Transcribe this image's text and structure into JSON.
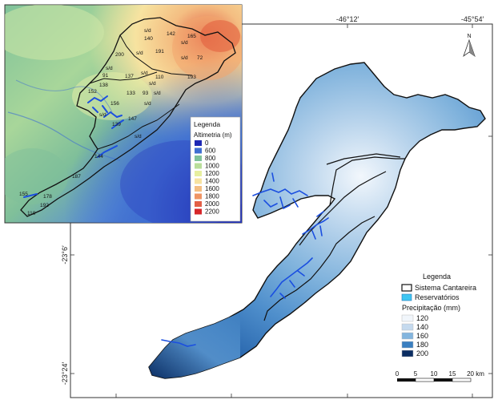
{
  "map": {
    "coords": {
      "top": [
        "-46°12′",
        "-45°54′"
      ],
      "left": [
        "-23°6′",
        "-23°24′"
      ]
    },
    "north_label": "N",
    "legend_precip": {
      "title": "Legenda",
      "items": [
        {
          "label": "Sistema Cantareira",
          "color": "#ffffff"
        },
        {
          "label": "Reservatórios",
          "color": "#3ec6f2"
        }
      ],
      "subtitle": "Precipitação (mm)",
      "classes": [
        {
          "label": "120",
          "color": "#f1f6fb"
        },
        {
          "label": "140",
          "color": "#c5daee"
        },
        {
          "label": "160",
          "color": "#83b5de"
        },
        {
          "label": "180",
          "color": "#3a7fc0"
        },
        {
          "label": "200",
          "color": "#0b2d62"
        }
      ]
    },
    "scalebar": {
      "ticks": [
        "0",
        "5",
        "10",
        "15",
        "20 km"
      ]
    }
  },
  "inset": {
    "legend": {
      "title": "Legenda",
      "subtitle": "Altimetria (m)",
      "classes": [
        {
          "label": "0",
          "color": "#1d27b4"
        },
        {
          "label": "600",
          "color": "#3f6fd2"
        },
        {
          "label": "800",
          "color": "#7fc29a"
        },
        {
          "label": "1000",
          "color": "#b9de9a"
        },
        {
          "label": "1200",
          "color": "#e7ef9f"
        },
        {
          "label": "1400",
          "color": "#f7e3a0"
        },
        {
          "label": "1600",
          "color": "#f4be82"
        },
        {
          "label": "1800",
          "color": "#ef9464"
        },
        {
          "label": "2000",
          "color": "#e35f46"
        },
        {
          "label": "2200",
          "color": "#d6262a"
        }
      ]
    },
    "station_labels": [
      "142",
      "165",
      "140",
      "s/d",
      "s/d",
      "200",
      "s/d",
      "191",
      "s/d",
      "72",
      "s/d",
      "91",
      "137",
      "s/d",
      "110",
      "193",
      "138",
      "s/d",
      "152",
      "133",
      "93",
      "s/d",
      "156",
      "s/d",
      "147",
      "139",
      "s/d",
      "s/d",
      "144",
      "187",
      "155",
      "178",
      "192",
      "110"
    ]
  }
}
